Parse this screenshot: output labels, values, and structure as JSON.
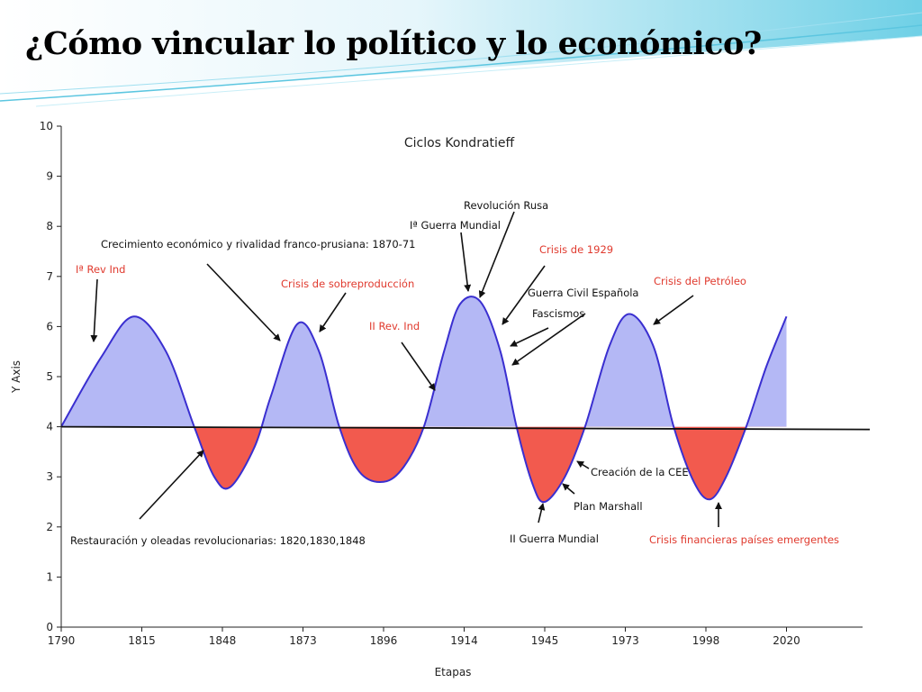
{
  "slide": {
    "title": "¿Cómo vincular lo político y lo económico?"
  },
  "colors": {
    "expansion_fill": "#b4b8f5",
    "contraction_fill": "#f25a4e",
    "curve": "#3a2fd0",
    "baseline": "#111111",
    "red_annotation": "#e03a2e"
  },
  "chart_data": {
    "type": "area",
    "title": "Ciclos Kondratieff",
    "xlabel": "Etapas",
    "ylabel": "Y Axis",
    "ylim": [
      0,
      10
    ],
    "yticks": [
      0,
      1,
      2,
      3,
      4,
      5,
      6,
      7,
      8,
      9,
      10
    ],
    "xticks": [
      "1790",
      "1815",
      "1848",
      "1873",
      "1896",
      "1914",
      "1945",
      "1973",
      "1998",
      "2020"
    ],
    "baseline": 4,
    "grid": false,
    "curve_points": [
      {
        "x": 0.0,
        "y": 4.0
      },
      {
        "x": 0.5,
        "y": 5.4
      },
      {
        "x": 0.9,
        "y": 6.2
      },
      {
        "x": 1.3,
        "y": 5.5
      },
      {
        "x": 1.65,
        "y": 4.0
      },
      {
        "x": 1.9,
        "y": 3.0
      },
      {
        "x": 2.1,
        "y": 2.8
      },
      {
        "x": 2.4,
        "y": 3.6
      },
      {
        "x": 2.6,
        "y": 4.6
      },
      {
        "x": 2.93,
        "y": 6.05
      },
      {
        "x": 3.2,
        "y": 5.5
      },
      {
        "x": 3.45,
        "y": 4.0
      },
      {
        "x": 3.7,
        "y": 3.1
      },
      {
        "x": 4.0,
        "y": 2.9
      },
      {
        "x": 4.25,
        "y": 3.2
      },
      {
        "x": 4.5,
        "y": 4.0
      },
      {
        "x": 4.75,
        "y": 5.5
      },
      {
        "x": 4.95,
        "y": 6.45
      },
      {
        "x": 5.2,
        "y": 6.5
      },
      {
        "x": 5.45,
        "y": 5.5
      },
      {
        "x": 5.65,
        "y": 4.0
      },
      {
        "x": 5.85,
        "y": 2.85
      },
      {
        "x": 6.0,
        "y": 2.5
      },
      {
        "x": 6.25,
        "y": 3.0
      },
      {
        "x": 6.5,
        "y": 4.0
      },
      {
        "x": 6.8,
        "y": 5.6
      },
      {
        "x": 7.05,
        "y": 6.25
      },
      {
        "x": 7.35,
        "y": 5.6
      },
      {
        "x": 7.6,
        "y": 4.0
      },
      {
        "x": 7.85,
        "y": 2.9
      },
      {
        "x": 8.05,
        "y": 2.55
      },
      {
        "x": 8.25,
        "y": 3.0
      },
      {
        "x": 8.5,
        "y": 4.0
      },
      {
        "x": 8.75,
        "y": 5.2
      },
      {
        "x": 9.0,
        "y": 6.2
      }
    ],
    "annotations": [
      {
        "text": "Iª Rev Ind",
        "color": "red"
      },
      {
        "text": "Crecimiento económico y rivalidad franco-prusiana: 1870-71",
        "color": "black"
      },
      {
        "text": "Crisis de sobreproducción",
        "color": "red"
      },
      {
        "text": "II Rev. Ind",
        "color": "red"
      },
      {
        "text": "Revolución Rusa",
        "color": "black"
      },
      {
        "text": "Iª Guerra Mundial",
        "color": "black"
      },
      {
        "text": "Crisis de 1929",
        "color": "red"
      },
      {
        "text": "Guerra Civil Española",
        "color": "black"
      },
      {
        "text": "Fascismos",
        "color": "black"
      },
      {
        "text": "Crisis del Petróleo",
        "color": "red"
      },
      {
        "text": "Creación de la CEE",
        "color": "black"
      },
      {
        "text": "Plan Marshall",
        "color": "black"
      },
      {
        "text": "II Guerra Mundial",
        "color": "black"
      },
      {
        "text": "Crisis financieras países emergentes",
        "color": "red"
      },
      {
        "text": "Restauración y oleadas revolucionarias: 1820,1830,1848",
        "color": "black"
      }
    ]
  }
}
